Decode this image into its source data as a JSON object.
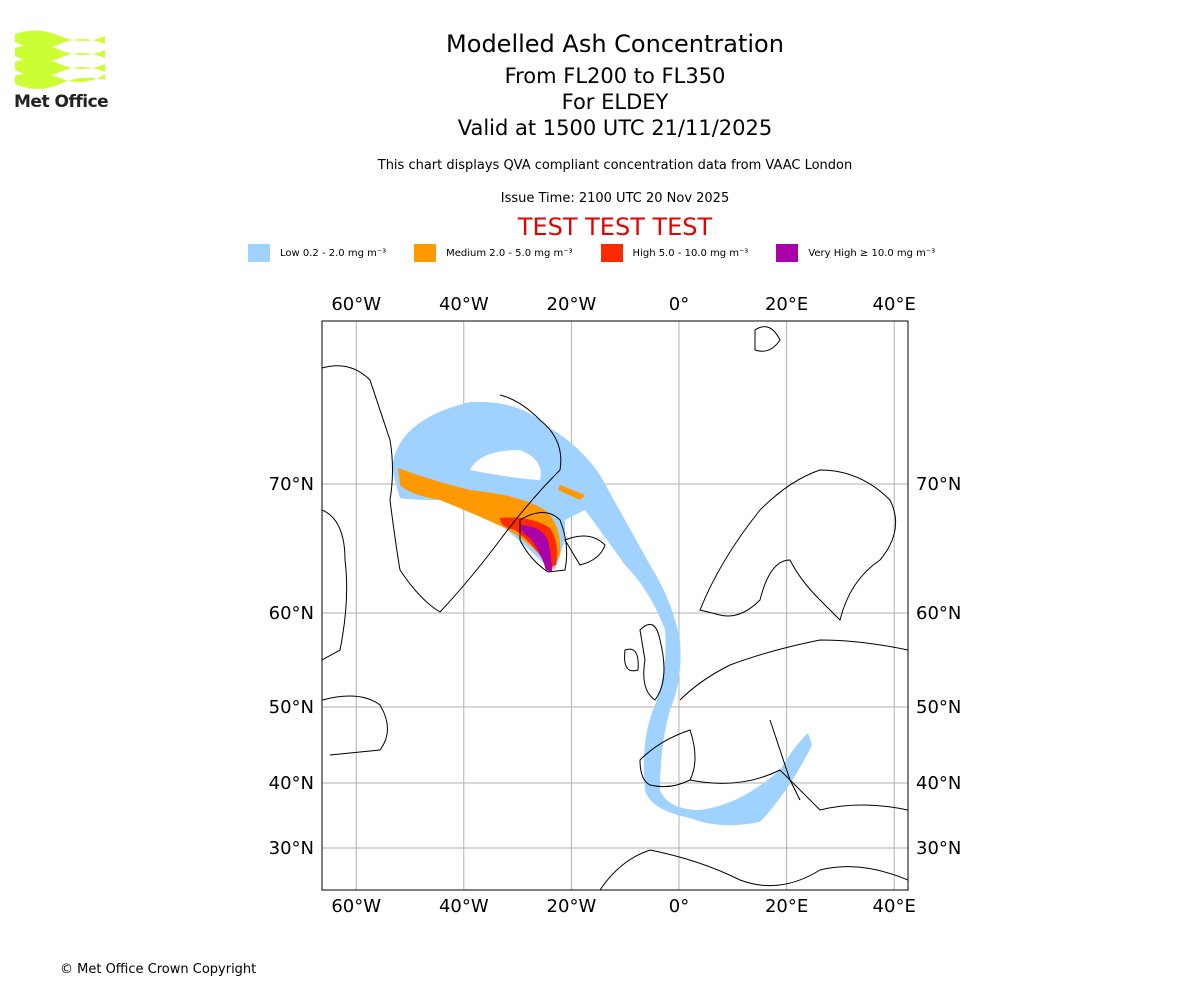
{
  "logo": {
    "text": "Met Office"
  },
  "header": {
    "title": "Modelled Ash Concentration",
    "levels": "From FL200 to FL350",
    "location": "For ELDEY",
    "valid": "Valid at 1500 UTC 21/11/2025",
    "description": "This chart displays QVA compliant concentration data from VAAC London",
    "issue_time": "Issue Time: 2100 UTC 20 Nov 2025",
    "test_banner": "TEST TEST TEST",
    "test_color": "#e60000"
  },
  "legend": [
    {
      "label": "Low 0.2 - 2.0 mg m⁻³",
      "color": "#a0d2ff"
    },
    {
      "label": "Medium 2.0 - 5.0 mg m⁻³",
      "color": "#ff9900"
    },
    {
      "label": "High 5.0 - 10.0 mg m⁻³",
      "color": "#ff2a00"
    },
    {
      "label": "Very High ≥ 10.0 mg m⁻³",
      "color": "#aa00aa"
    }
  ],
  "map": {
    "lon_ticks": [
      {
        "value": -60,
        "label": "60°W"
      },
      {
        "value": -40,
        "label": "40°W"
      },
      {
        "value": -20,
        "label": "20°W"
      },
      {
        "value": 0,
        "label": "0°"
      },
      {
        "value": 20,
        "label": "20°E"
      },
      {
        "value": 40,
        "label": "40°E"
      }
    ],
    "lat_ticks": [
      {
        "value": 70,
        "label": "70°N"
      },
      {
        "value": 60,
        "label": "60°N"
      },
      {
        "value": 50,
        "label": "50°N"
      },
      {
        "value": 40,
        "label": "40°N"
      },
      {
        "value": 30,
        "label": "30°N"
      }
    ]
  },
  "footer": {
    "copyright": "© Met Office Crown Copyright"
  }
}
